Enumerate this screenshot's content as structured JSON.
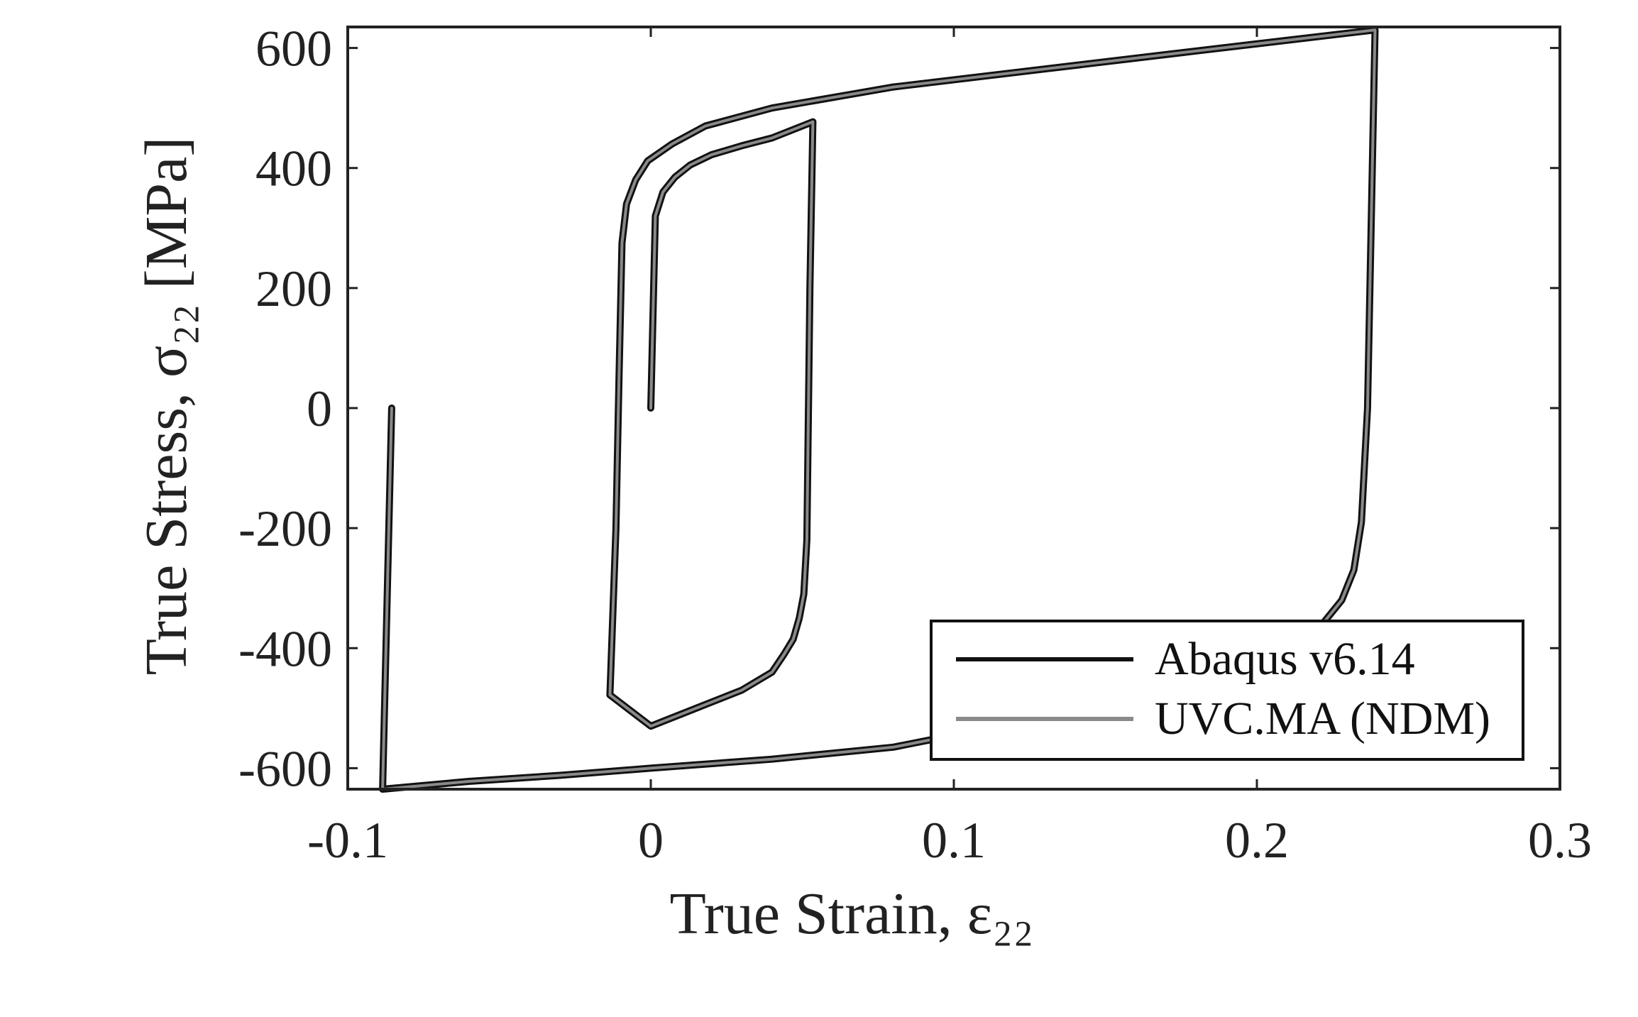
{
  "chart_data": {
    "type": "line",
    "xlabel": "True Strain, ε₂₂",
    "ylabel": "True Stress, σ₂₂ [MPa]",
    "xlim": [
      -0.1,
      0.3
    ],
    "ylim": [
      -635,
      635
    ],
    "x_ticks": [
      "-0.1",
      "0",
      "0.1",
      "0.2",
      "0.3"
    ],
    "y_ticks": [
      "600",
      "400",
      "200",
      "0",
      "-200",
      "-400",
      "-600"
    ],
    "x_tick_values": [
      -0.1,
      0,
      0.1,
      0.2,
      0.3
    ],
    "y_tick_values": [
      600,
      400,
      200,
      0,
      -200,
      -400,
      -600
    ],
    "grid": false,
    "legend_position": "bottom-right",
    "series": [
      {
        "name": "Abaqus v6.14",
        "color": "#111111",
        "x": [
          0.0,
          0.0015,
          0.004,
          0.008,
          0.013,
          0.02,
          0.03,
          0.04,
          0.0535,
          0.0525,
          0.0515,
          0.0505,
          0.049,
          0.047,
          0.044,
          0.04,
          0.03,
          0.02,
          0.01,
          0.0,
          -0.0135,
          -0.0115,
          -0.0105,
          -0.0095,
          -0.008,
          -0.005,
          -0.001,
          0.007,
          0.018,
          0.04,
          0.08,
          0.13,
          0.18,
          0.239,
          0.2365,
          0.2345,
          0.232,
          0.228,
          0.22,
          0.2,
          0.15,
          0.1,
          0.08,
          0.04,
          0.0,
          -0.03,
          -0.06,
          -0.0885,
          -0.0855
        ],
        "y": [
          0,
          320,
          360,
          385,
          405,
          422,
          437,
          450,
          477,
          200,
          -220,
          -310,
          -350,
          -385,
          -410,
          -440,
          -470,
          -490,
          -510,
          -530,
          -478,
          -200,
          50,
          275,
          340,
          380,
          412,
          440,
          470,
          500,
          535,
          565,
          595,
          630,
          0,
          -190,
          -270,
          -320,
          -370,
          -450,
          -520,
          -545,
          -565,
          -585,
          -600,
          -612,
          -622,
          -635,
          0
        ]
      },
      {
        "name": "UVC.MA (NDM)",
        "color": "#8a8a8a",
        "x": [
          0.0,
          0.0015,
          0.004,
          0.008,
          0.013,
          0.02,
          0.03,
          0.04,
          0.0535,
          0.0525,
          0.0515,
          0.0505,
          0.049,
          0.047,
          0.044,
          0.04,
          0.03,
          0.02,
          0.01,
          0.0,
          -0.0135,
          -0.0115,
          -0.0105,
          -0.0095,
          -0.008,
          -0.005,
          -0.001,
          0.007,
          0.018,
          0.04,
          0.08,
          0.13,
          0.18,
          0.239,
          0.2365,
          0.2345,
          0.232,
          0.228,
          0.22,
          0.2,
          0.15,
          0.1,
          0.08,
          0.04,
          0.0,
          -0.03,
          -0.06,
          -0.0885,
          -0.0855
        ],
        "y": [
          0,
          320,
          360,
          385,
          405,
          422,
          437,
          450,
          477,
          200,
          -220,
          -310,
          -350,
          -385,
          -410,
          -440,
          -470,
          -490,
          -510,
          -530,
          -478,
          -200,
          50,
          275,
          340,
          380,
          412,
          440,
          470,
          500,
          535,
          565,
          595,
          630,
          0,
          -190,
          -270,
          -320,
          -370,
          -450,
          -520,
          -545,
          -565,
          -585,
          -600,
          -612,
          -622,
          -635,
          0
        ]
      }
    ]
  }
}
